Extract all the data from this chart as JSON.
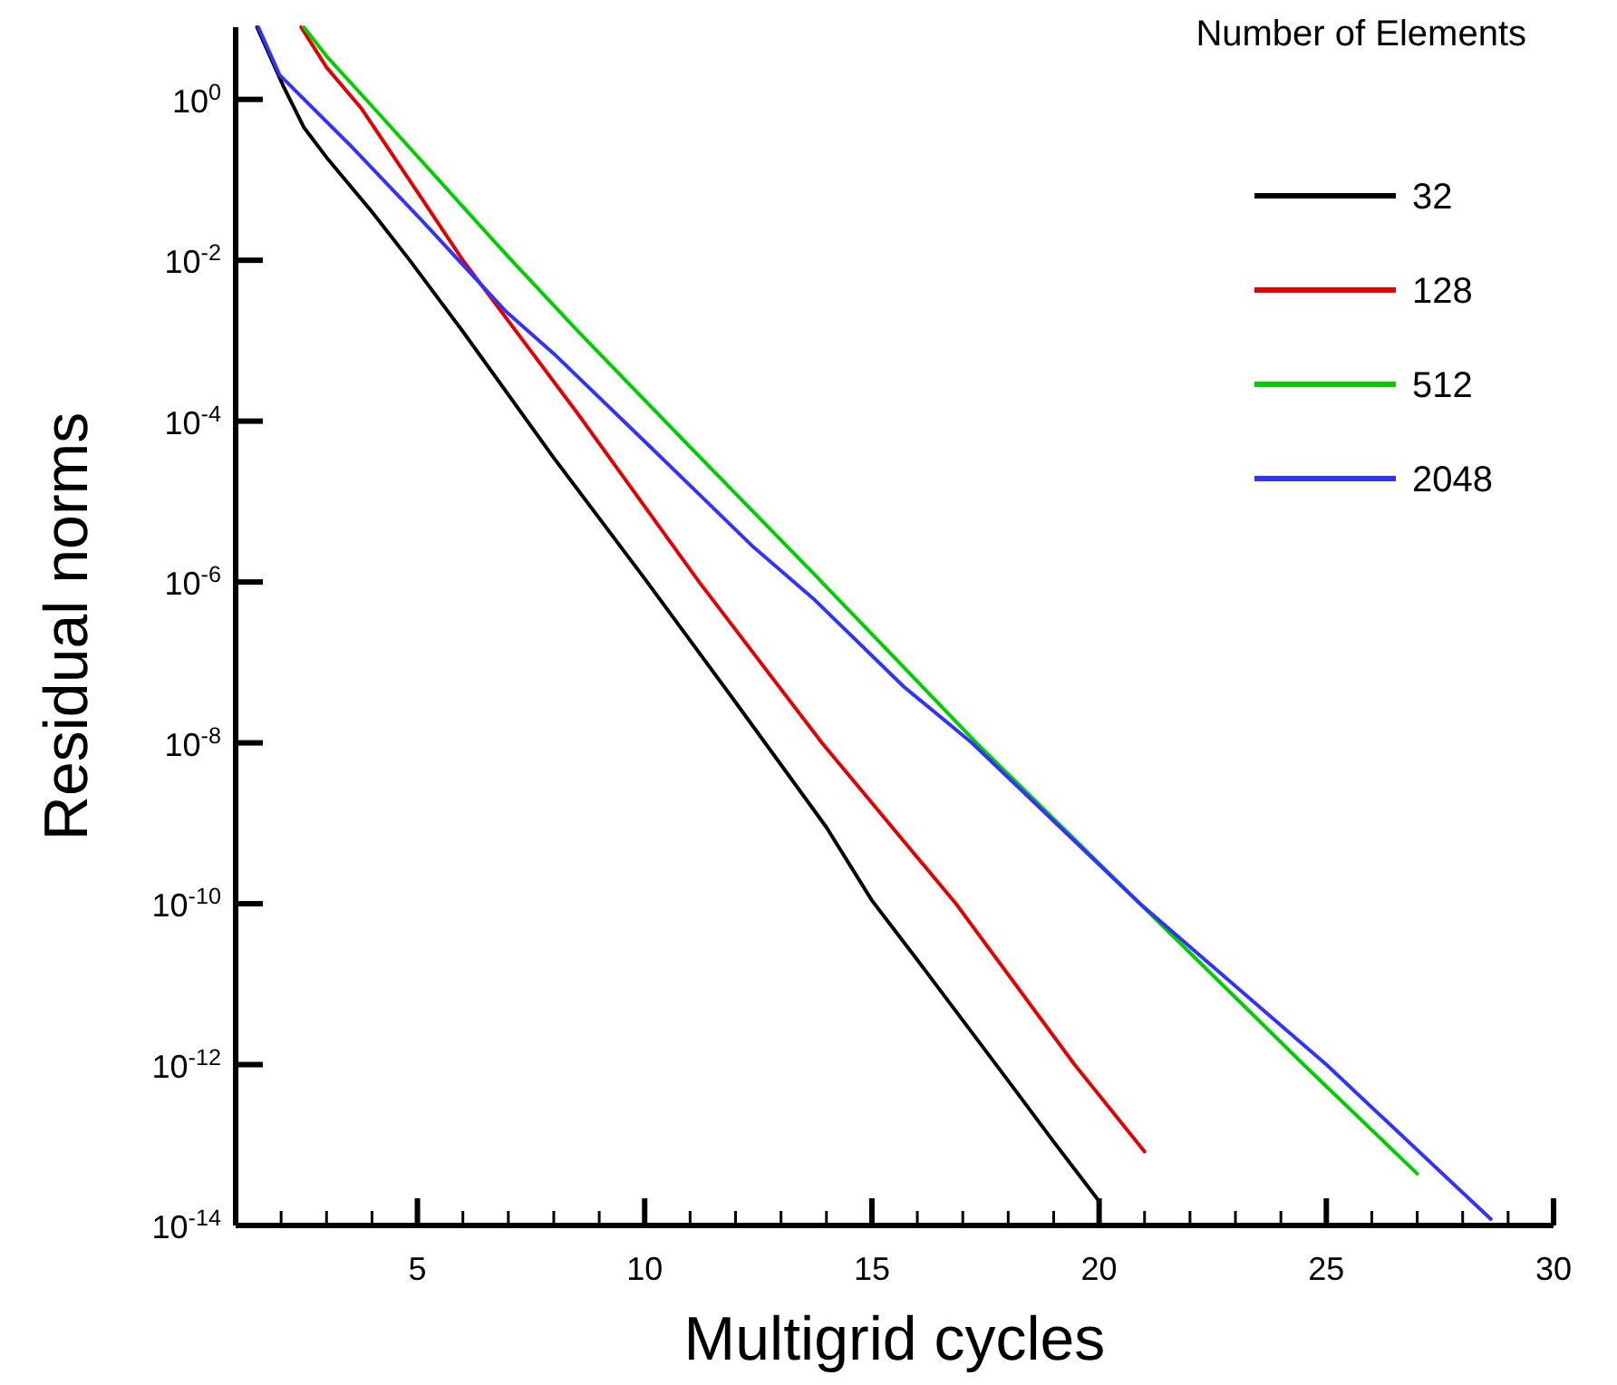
{
  "chart_data": {
    "type": "line",
    "xlabel": "Multigrid cycles",
    "ylabel": "Residual norms",
    "legend_title": "Number of Elements",
    "legend": "top right",
    "log": "y",
    "grid": false,
    "marker": "none",
    "line_style": "solid",
    "xlim": [
      1,
      30
    ],
    "ylim": [
      1e-14,
      7.9
    ],
    "xticks": [
      {
        "value": 2,
        "label": null
      },
      {
        "value": 3,
        "label": null
      },
      {
        "value": 4,
        "label": null
      },
      5,
      {
        "value": 6,
        "label": null
      },
      {
        "value": 7,
        "label": null
      },
      {
        "value": 8,
        "label": null
      },
      {
        "value": 9,
        "label": null
      },
      10,
      {
        "value": 11,
        "label": null
      },
      {
        "value": 12,
        "label": null
      },
      {
        "value": 13,
        "label": null
      },
      {
        "value": 14,
        "label": null
      },
      15,
      {
        "value": 16,
        "label": null
      },
      {
        "value": 17,
        "label": null
      },
      {
        "value": 18,
        "label": null
      },
      {
        "value": 19,
        "label": null
      },
      20,
      {
        "value": 21,
        "label": null
      },
      {
        "value": 22,
        "label": null
      },
      {
        "value": 23,
        "label": null
      },
      {
        "value": 24,
        "label": null
      },
      25,
      {
        "value": 26,
        "label": null
      },
      {
        "value": 27,
        "label": null
      },
      {
        "value": 28,
        "label": null
      },
      {
        "value": 29,
        "label": null
      },
      30
    ],
    "yticks": [
      {
        "value": 1e-14,
        "label": "10$^{-14}$"
      },
      {
        "value": 1e-12,
        "label": "10$^{-12}$"
      },
      {
        "value": 1e-10,
        "label": "10$^{-10}$"
      },
      {
        "value": 1e-08,
        "label": "10$^{-8}$"
      },
      {
        "value": 1e-06,
        "label": "10$^{-6}$"
      },
      {
        "value": 0.0001,
        "label": "10$^{-4}$"
      },
      {
        "value": 0.01,
        "label": "10$^{-2}$"
      },
      {
        "value": 1,
        "label": "10$^{0}$"
      }
    ],
    "series": [
      {
        "name": "32",
        "color": "#000000",
        "x": [
          1.47,
          2.04,
          2.5,
          3,
          4,
          4.83,
          6,
          8,
          10,
          12,
          14,
          15,
          16,
          18,
          19,
          20
        ],
        "values": [
          7.9,
          1.5,
          0.45,
          0.19,
          0.04,
          0.01,
          0.0013,
          3.5e-05,
          1.1e-06,
          3.2e-08,
          8.9e-10,
          1.1e-10,
          2e-11,
          6.3e-13,
          1.1e-13,
          2e-14
        ]
      },
      {
        "name": "128",
        "color": "#e00000",
        "x": [
          2.44,
          3,
          3.76,
          5.1,
          6,
          8.5,
          11.2,
          13.9,
          16.85,
          19.46,
          21
        ],
        "values": [
          7.9,
          2.5,
          0.78,
          0.058,
          0.01,
          0.00013,
          1e-06,
          1e-08,
          1e-10,
          1e-12,
          8.3e-14
        ]
      },
      {
        "name": "512",
        "color": "#00cc00",
        "x": [
          2.5,
          3.03,
          4.04,
          6.02,
          7,
          8.54,
          11.06,
          13.7,
          17.3,
          20.9,
          24.5,
          27
        ],
        "values": [
          7.9,
          3.3,
          0.78,
          0.045,
          0.011,
          0.0013,
          4.4e-05,
          1.3e-06,
          1e-08,
          1e-10,
          1e-12,
          4.4e-14
        ]
      },
      {
        "name": "2048",
        "color": "#3333ff",
        "x": [
          1.5,
          1.97,
          3.49,
          5.08,
          6.95,
          8,
          10,
          12.4,
          13.7,
          15.7,
          17.2,
          20.9,
          25,
          28.62
        ],
        "values": [
          7.9,
          2,
          0.28,
          0.032,
          0.0023,
          0.00069,
          5.6e-05,
          2.7e-06,
          6.3e-07,
          5e-08,
          1e-08,
          1e-10,
          1e-12,
          1.2e-14
        ]
      }
    ]
  }
}
